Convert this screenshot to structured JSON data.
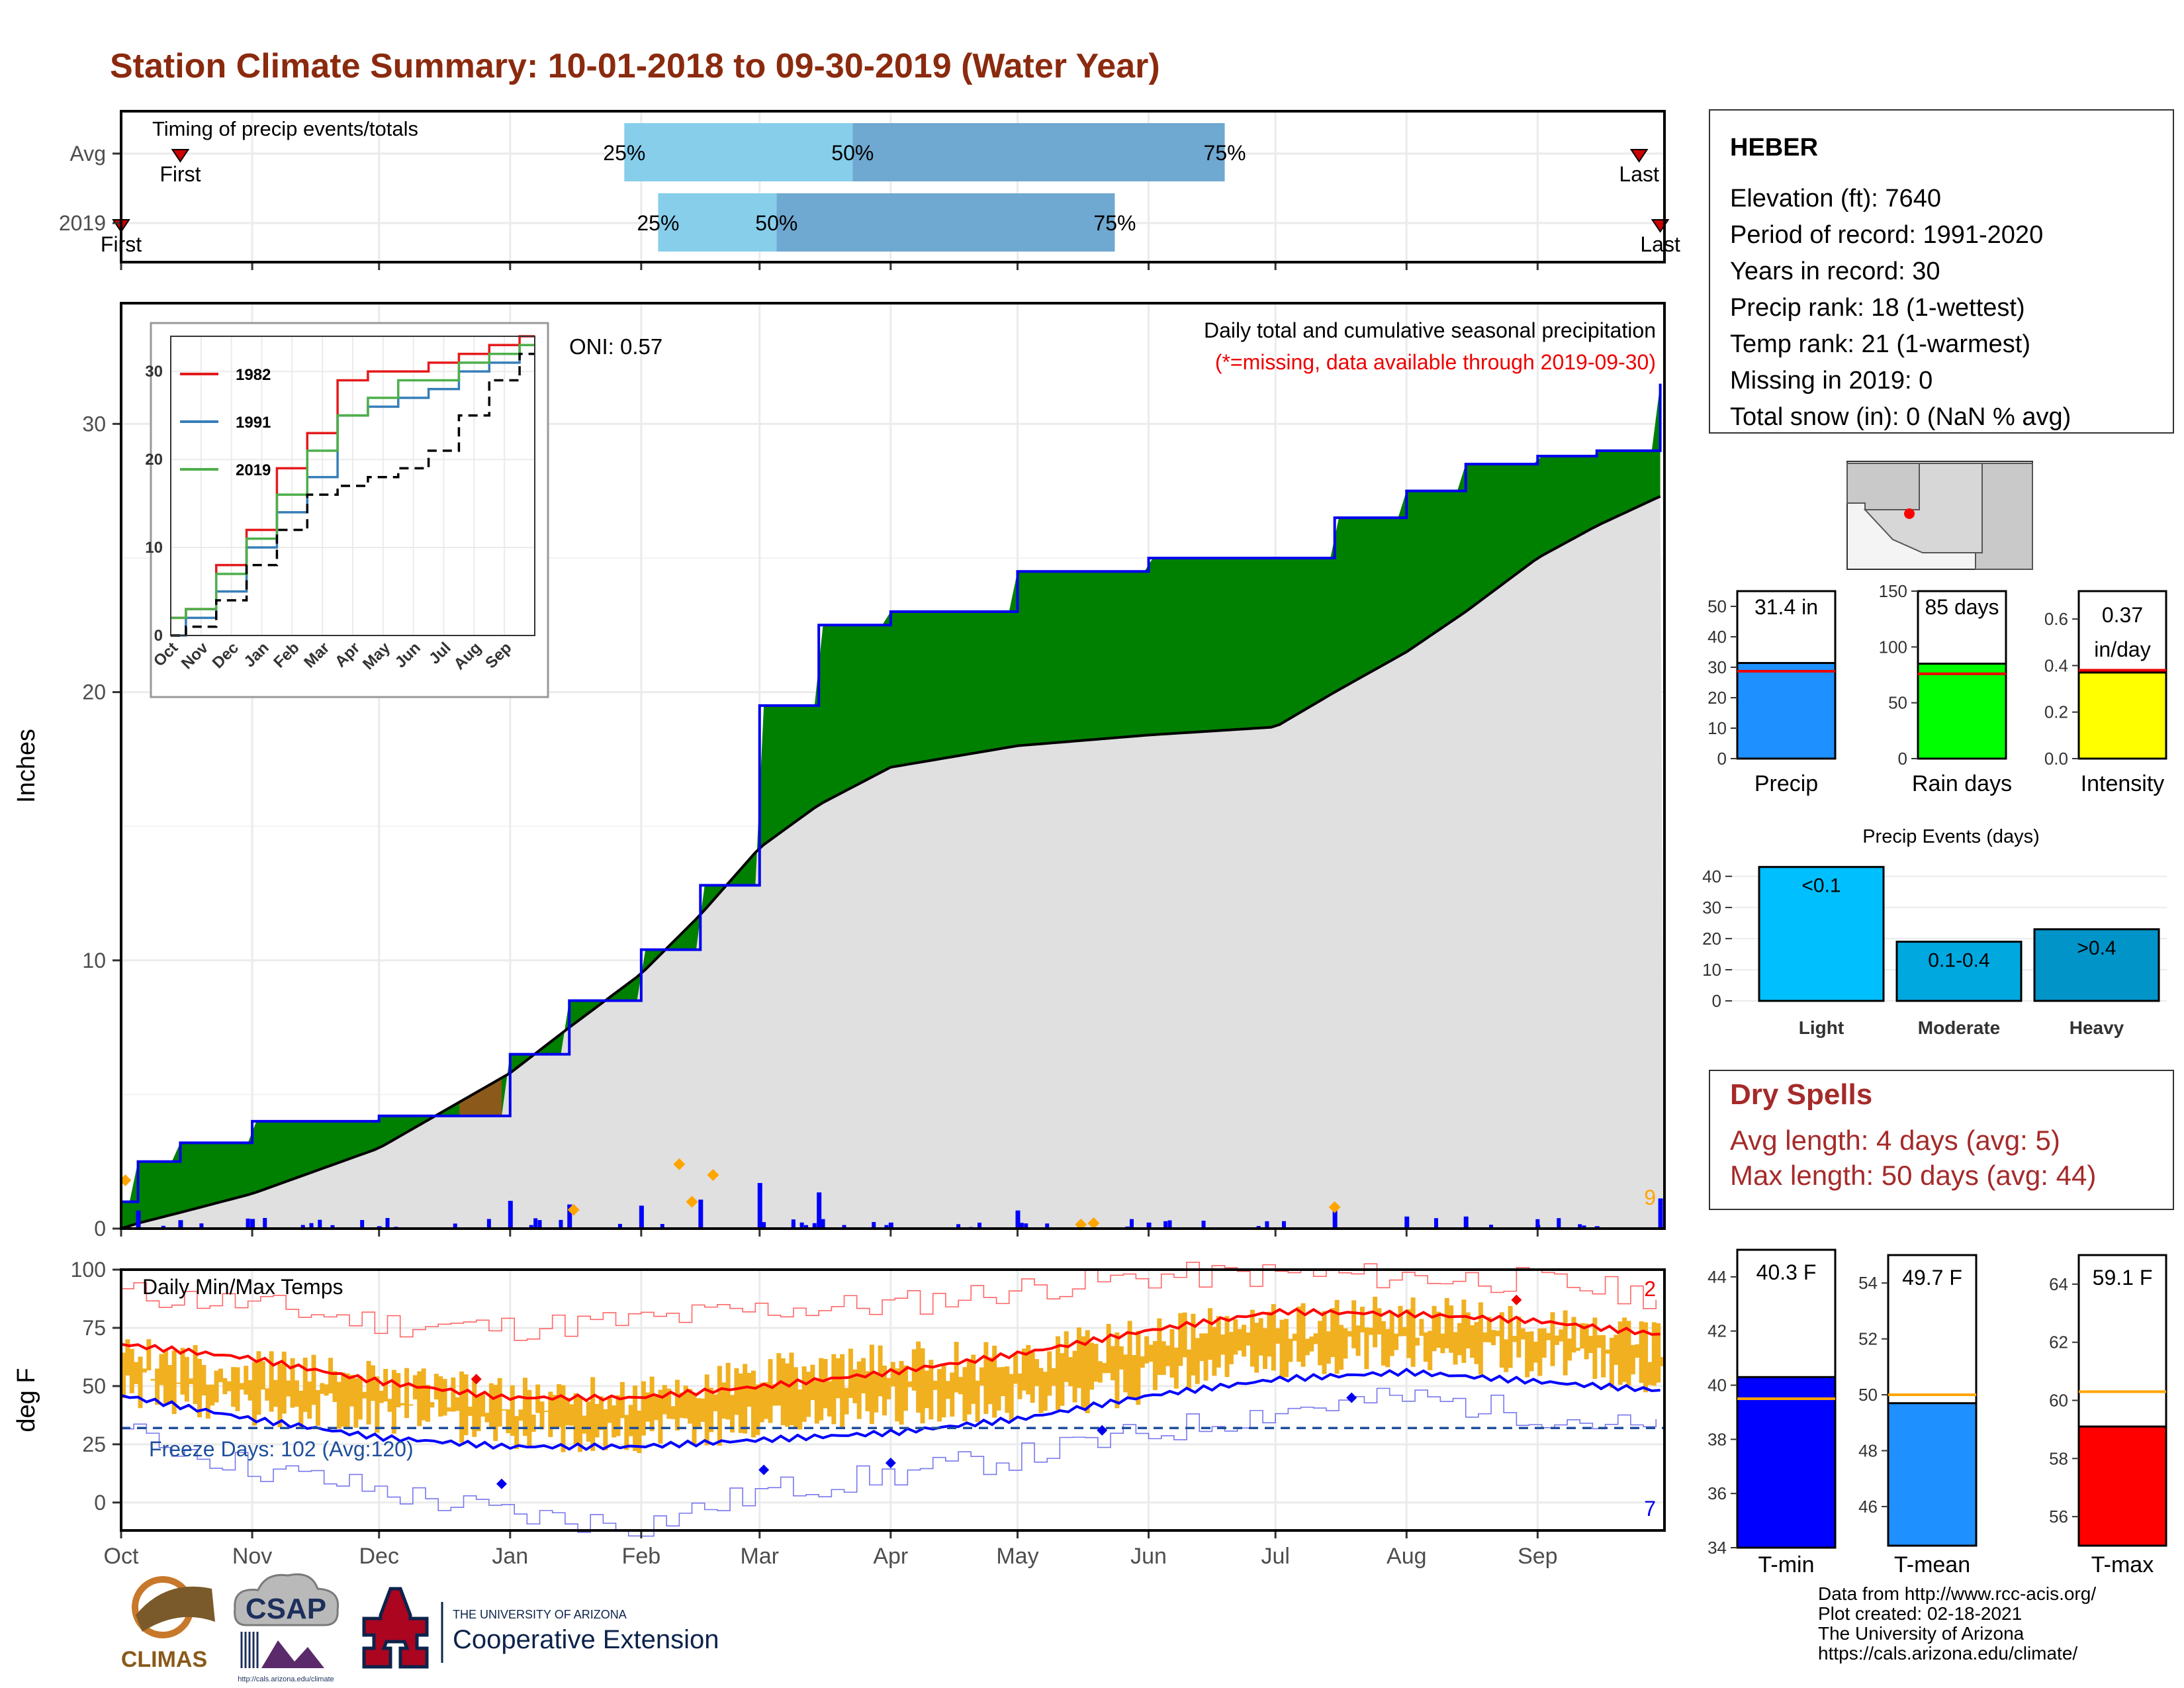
{
  "title": "Station Climate Summary: 10-01-2018 to 09-30-2019 (Water Year)",
  "colors": {
    "title": "#8b2a0e",
    "cumulative_above": "#008000",
    "cumulative_below": "#8b5a1a",
    "climatology_fill": "#e0e0e0",
    "daily_precip": "#0000ff",
    "temp_bars": "#f0b020",
    "avg_max": "#ff0000",
    "avg_min": "#0000ff",
    "dry_spell_text": "#a52a2a"
  },
  "timing": {
    "heading": "Timing of precip events/totals",
    "rows": [
      "Avg",
      "2019"
    ],
    "avg": {
      "first": "First",
      "last": "Last",
      "p25": "25%",
      "p50": "50%",
      "p75": "75%"
    },
    "y2019": {
      "first": "First",
      "last": "Last",
      "p25": "25%",
      "p50": "50%",
      "p75": "75%"
    }
  },
  "precip_panel": {
    "ylabel": "Inches",
    "yticks": [
      "0",
      "10",
      "20",
      "30"
    ],
    "oni": "ONI: 0.57",
    "heading": "Daily total and cumulative seasonal precipitation",
    "missing_note": "(*=missing, data available through 2019-09-30)",
    "right_count": "9"
  },
  "inset": {
    "series": [
      "1982",
      "1991",
      "2019"
    ],
    "months": [
      "Oct",
      "Nov",
      "Dec",
      "Jan",
      "Feb",
      "Mar",
      "Apr",
      "May",
      "Jun",
      "Jul",
      "Aug",
      "Sep"
    ],
    "yticks": [
      "0",
      "10",
      "20",
      "30"
    ]
  },
  "temp_panel": {
    "ylabel": "deg F",
    "heading": "Daily Min/Max Temps",
    "freeze": "Freeze Days: 102 (Avg:120)",
    "yticks": [
      "0",
      "25",
      "50",
      "75",
      "100"
    ],
    "record_high_count": "2",
    "record_low_count": "7"
  },
  "months": [
    "Oct",
    "Nov",
    "Dec",
    "Jan",
    "Feb",
    "Mar",
    "Apr",
    "May",
    "Jun",
    "Jul",
    "Aug",
    "Sep"
  ],
  "station": {
    "name": "HEBER",
    "lines": [
      "Elevation (ft): 7640",
      "Period of record: 1991-2020",
      "Years in record: 30",
      "Precip rank: 18 (1-wettest)",
      "Temp rank: 21 (1-warmest)",
      "Missing in 2019: 0",
      "Total snow (in): 0 (NaN % avg)"
    ]
  },
  "summary_bars": {
    "precip": {
      "label": "Precip",
      "value_text": "31.4 in",
      "value": 31.4,
      "avg": 28.7,
      "yticks": [
        "0",
        "10",
        "20",
        "30",
        "40",
        "50"
      ]
    },
    "rain_days": {
      "label": "Rain days",
      "value_text": "85 days",
      "value": 85,
      "avg": 76,
      "yticks": [
        "0",
        "50",
        "100",
        "150"
      ]
    },
    "intensity": {
      "label": "Intensity",
      "value_text": "0.37 in/day",
      "value_line1": "0.37",
      "value_line2": "in/day",
      "value": 0.37,
      "avg": 0.38,
      "yticks": [
        "0.0",
        "0.2",
        "0.4",
        "0.6"
      ]
    }
  },
  "events": {
    "title": "Precip Events (days)",
    "yticks": [
      "0",
      "10",
      "20",
      "30",
      "40"
    ],
    "bars": [
      {
        "label": "Light",
        "inner": "<0.1",
        "value": 43
      },
      {
        "label": "Moderate",
        "inner": "0.1-0.4",
        "value": 19
      },
      {
        "label": "Heavy",
        "inner": ">0.4",
        "value": 23
      }
    ]
  },
  "dry_spells": {
    "title": "Dry Spells",
    "avg": "Avg length: 4 days (avg: 5)",
    "max": "Max length: 50 days (avg: 44)"
  },
  "temp_bars": {
    "tmin": {
      "label": "T-min",
      "value_text": "40.3 F",
      "value": 40.3,
      "avg": 39.5,
      "yticks": [
        "34",
        "36",
        "38",
        "40",
        "42",
        "44"
      ]
    },
    "tmean": {
      "label": "T-mean",
      "value_text": "49.7 F",
      "value": 49.7,
      "avg": 50.0,
      "yticks": [
        "46",
        "48",
        "50",
        "52",
        "54"
      ]
    },
    "tmax": {
      "label": "T-max",
      "value_text": "59.1 F",
      "value": 59.1,
      "avg": 60.3,
      "yticks": [
        "56",
        "58",
        "60",
        "62",
        "64"
      ]
    }
  },
  "footer": [
    "Data from http://www.rcc-acis.org/",
    "Plot created: 02-18-2021",
    "The University of Arizona",
    "https://cals.arizona.edu/climate/"
  ],
  "logos": {
    "climas": "CLIMAS",
    "csap": "CSAP",
    "csap_url": "http://cals.arizona.edu/climate",
    "ua_small": "THE UNIVERSITY OF ARIZONA",
    "ua_large": "Cooperative Extension"
  },
  "chart_data": [
    {
      "type": "bar",
      "name": "timing",
      "categories": [
        "Avg",
        "2019"
      ],
      "first_day": [
        "Oct 15",
        "Oct 1"
      ],
      "last_day": [
        "Sep 25",
        "Sep 30"
      ],
      "p25": [
        "Jan 28",
        "Feb 5"
      ],
      "p50": [
        "Mar 23",
        "Mar 5"
      ],
      "p75": [
        "Jun 19",
        "May 24"
      ]
    },
    {
      "type": "area",
      "name": "cumulative precipitation",
      "x": [
        "2018-10-01",
        "2018-10-05",
        "2018-10-15",
        "2018-11-01",
        "2018-12-01",
        "2019-01-01",
        "2019-01-15",
        "2019-02-01",
        "2019-02-15",
        "2019-03-01",
        "2019-03-15",
        "2019-04-01",
        "2019-05-01",
        "2019-06-01",
        "2019-07-01",
        "2019-07-15",
        "2019-08-01",
        "2019-08-15",
        "2019-09-01",
        "2019-09-15",
        "2019-09-30"
      ],
      "series": [
        {
          "name": "2019",
          "values": [
            1.0,
            2.5,
            3.2,
            4.0,
            4.2,
            6.5,
            8.5,
            10.4,
            12.8,
            19.5,
            22.5,
            23.0,
            24.5,
            25.0,
            25.0,
            26.5,
            27.5,
            28.5,
            28.8,
            29.0,
            31.5
          ]
        },
        {
          "name": "Average",
          "values": [
            0.0,
            0.2,
            0.6,
            1.3,
            3.0,
            5.8,
            7.5,
            9.5,
            11.7,
            14.2,
            15.8,
            17.2,
            18.0,
            18.4,
            18.7,
            20.0,
            21.5,
            23.0,
            25.0,
            26.2,
            27.3
          ]
        }
      ],
      "ylim": [
        0,
        35
      ]
    },
    {
      "type": "line",
      "name": "inset cumulative comparisons",
      "x": [
        "Oct",
        "Nov",
        "Dec",
        "Jan",
        "Feb",
        "Mar",
        "Apr",
        "May",
        "Jun",
        "Jul",
        "Aug",
        "Sep",
        "end"
      ],
      "series": [
        {
          "name": "1982",
          "values": [
            2,
            3,
            8,
            12,
            19,
            23,
            29,
            30,
            30,
            31,
            32,
            33,
            34
          ]
        },
        {
          "name": "1991",
          "values": [
            0,
            2,
            5,
            10,
            14,
            18,
            25,
            26,
            27,
            28,
            30,
            31,
            33
          ]
        },
        {
          "name": "2019",
          "values": [
            2,
            3,
            7,
            11,
            16,
            21,
            25,
            27,
            29,
            29,
            31,
            32,
            33
          ]
        },
        {
          "name": "Average",
          "values": [
            0,
            1,
            4,
            8,
            12,
            16,
            17,
            18,
            19,
            21,
            25,
            29,
            32
          ]
        }
      ],
      "ylim": [
        0,
        34
      ]
    },
    {
      "type": "line",
      "name": "daily temperatures",
      "x": [
        "Oct",
        "Nov",
        "Dec",
        "Jan",
        "Feb",
        "Mar",
        "Apr",
        "May",
        "Jun",
        "Jul",
        "Aug",
        "Sep",
        "end"
      ],
      "series": [
        {
          "name": "Avg max",
          "values": [
            68,
            62,
            52,
            45,
            45,
            50,
            56,
            64,
            74,
            82,
            81,
            78,
            72
          ]
        },
        {
          "name": "Avg min",
          "values": [
            46,
            36,
            28,
            24,
            24,
            27,
            30,
            36,
            46,
            53,
            56,
            52,
            48
          ]
        },
        {
          "name": "Record max",
          "values": [
            90,
            85,
            77,
            75,
            78,
            83,
            85,
            92,
            97,
            98,
            97,
            95,
            88
          ]
        },
        {
          "name": "Record min",
          "values": [
            30,
            15,
            5,
            -5,
            -10,
            5,
            12,
            20,
            30,
            40,
            45,
            38,
            30
          ]
        },
        {
          "name": "Observed max",
          "values": [
            62,
            58,
            52,
            45,
            45,
            55,
            60,
            62,
            72,
            78,
            80,
            76,
            68
          ]
        },
        {
          "name": "Observed min",
          "values": [
            40,
            32,
            28,
            22,
            18,
            25,
            32,
            32,
            42,
            52,
            56,
            52,
            45
          ]
        }
      ],
      "freeze_line": 32,
      "ylim": [
        -12,
        100
      ]
    },
    {
      "type": "bar",
      "name": "precip events",
      "categories": [
        "Light",
        "Moderate",
        "Heavy"
      ],
      "values": [
        43,
        19,
        23
      ]
    }
  ]
}
